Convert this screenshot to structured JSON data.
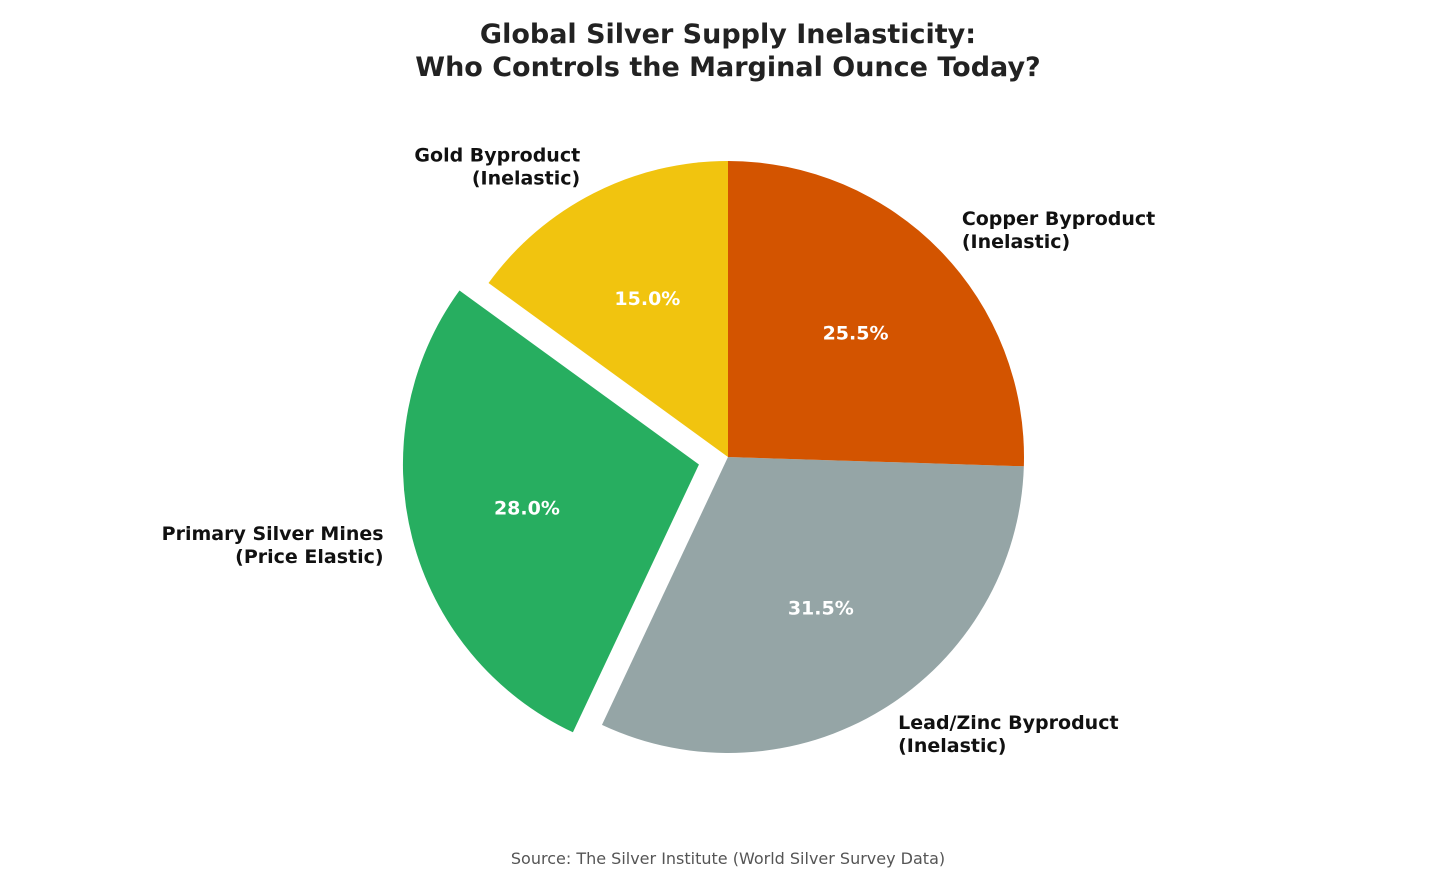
{
  "chart_data": {
    "type": "pie",
    "title_lines": [
      "Global Silver Supply Inelasticity:",
      "Who Controls the Marginal Ounce Today?"
    ],
    "start_angle_deg": 90,
    "direction": "counterclockwise",
    "slices": [
      {
        "label_lines": [
          "Gold Byproduct",
          "(Inelastic)"
        ],
        "value": 15.0,
        "pct_label": "15.0%",
        "color": "#F1C40F",
        "exploded": false
      },
      {
        "label_lines": [
          "Primary Silver Mines",
          "(Price Elastic)"
        ],
        "value": 28.0,
        "pct_label": "28.0%",
        "color": "#27AE60",
        "exploded": true
      },
      {
        "label_lines": [
          "Lead/Zinc Byproduct",
          "(Inelastic)"
        ],
        "value": 31.5,
        "pct_label": "31.5%",
        "color": "#95A5A6",
        "exploded": false
      },
      {
        "label_lines": [
          "Copper Byproduct",
          "(Inelastic)"
        ],
        "value": 25.5,
        "pct_label": "25.5%",
        "color": "#D35400",
        "exploded": false
      }
    ],
    "source": "Source: The Silver Institute (World Silver Survey Data)"
  }
}
